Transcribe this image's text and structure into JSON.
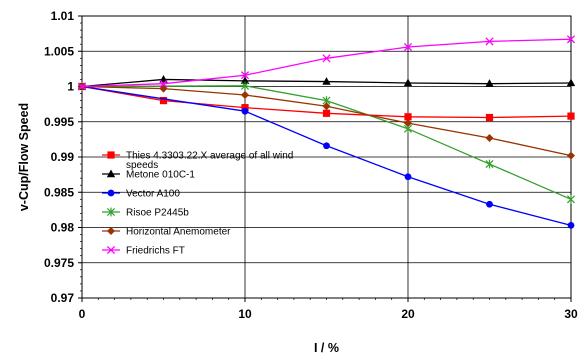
{
  "chart_data": {
    "type": "line",
    "xlabel": "I / %",
    "ylabel": "v-Cup/Flow Speed",
    "xlim": [
      0,
      30
    ],
    "ylim": [
      0.97,
      1.01
    ],
    "x_ticks": [
      "0",
      "10",
      "20",
      "30"
    ],
    "y_ticks": [
      "0.97",
      "0.975",
      "0.98",
      "0.985",
      "0.99",
      "0.995",
      "1",
      "1.005",
      "1.01"
    ],
    "grid": "major gridlines on",
    "legend_position": "inside left",
    "series": [
      {
        "name": "Thies 4.3303.22.X average of all wind speeds",
        "color": "#ff0000",
        "marker": "square",
        "x": [
          0,
          5,
          10,
          15,
          20,
          25,
          30
        ],
        "y": [
          1.0,
          0.998,
          0.997,
          0.9962,
          0.9957,
          0.9956,
          0.9958
        ]
      },
      {
        "name": "Metone 010C-1",
        "color": "#000000",
        "marker": "triangle",
        "x": [
          0,
          5,
          10,
          15,
          20,
          25,
          30
        ],
        "y": [
          1.0,
          1.001,
          1.0008,
          1.0007,
          1.0005,
          1.0004,
          1.0005
        ]
      },
      {
        "name": "Vector A100",
        "color": "#0000ff",
        "marker": "circle",
        "x": [
          0,
          10,
          15,
          20,
          25,
          30
        ],
        "y": [
          1.0,
          0.9965,
          0.9916,
          0.9872,
          0.9833,
          0.9803
        ]
      },
      {
        "name": "Risoe P2445b",
        "color": "#33a02c",
        "marker": "asterisk",
        "x": [
          0,
          10,
          15,
          20,
          25,
          30
        ],
        "y": [
          1.0,
          1.0001,
          0.998,
          0.994,
          0.989,
          0.984
        ]
      },
      {
        "name": "Horizontal Anemometer",
        "color": "#993300",
        "marker": "diamond",
        "x": [
          0,
          5,
          10,
          15,
          20,
          25,
          30
        ],
        "y": [
          1.0,
          0.9997,
          0.9988,
          0.9972,
          0.9948,
          0.9927,
          0.9902
        ]
      },
      {
        "name": "Friedrichs FT",
        "color": "#ff00ff",
        "marker": "x",
        "x": [
          0,
          5,
          10,
          15,
          20,
          25,
          30
        ],
        "y": [
          1.0,
          1.0004,
          1.0016,
          1.004,
          1.0056,
          1.0064,
          1.0067
        ]
      }
    ]
  }
}
